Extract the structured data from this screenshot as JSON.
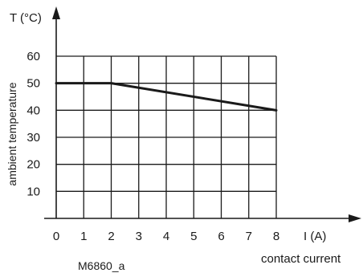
{
  "chart_data": {
    "type": "line",
    "title": "",
    "xlabel": "I (A)",
    "xsublabel": "contact current",
    "ylabel": "T (°C)",
    "ysublabel": "ambient temperature",
    "x_ticks": [
      0,
      1,
      2,
      3,
      4,
      5,
      6,
      7,
      8
    ],
    "y_ticks": [
      10,
      20,
      30,
      40,
      50,
      60
    ],
    "xlim": [
      0,
      8
    ],
    "ylim": [
      0,
      60
    ],
    "grid": true,
    "series": [
      {
        "x": [
          0,
          2,
          8
        ],
        "y": [
          50,
          50,
          40
        ]
      }
    ],
    "annotations": [
      "M6860_a"
    ]
  }
}
